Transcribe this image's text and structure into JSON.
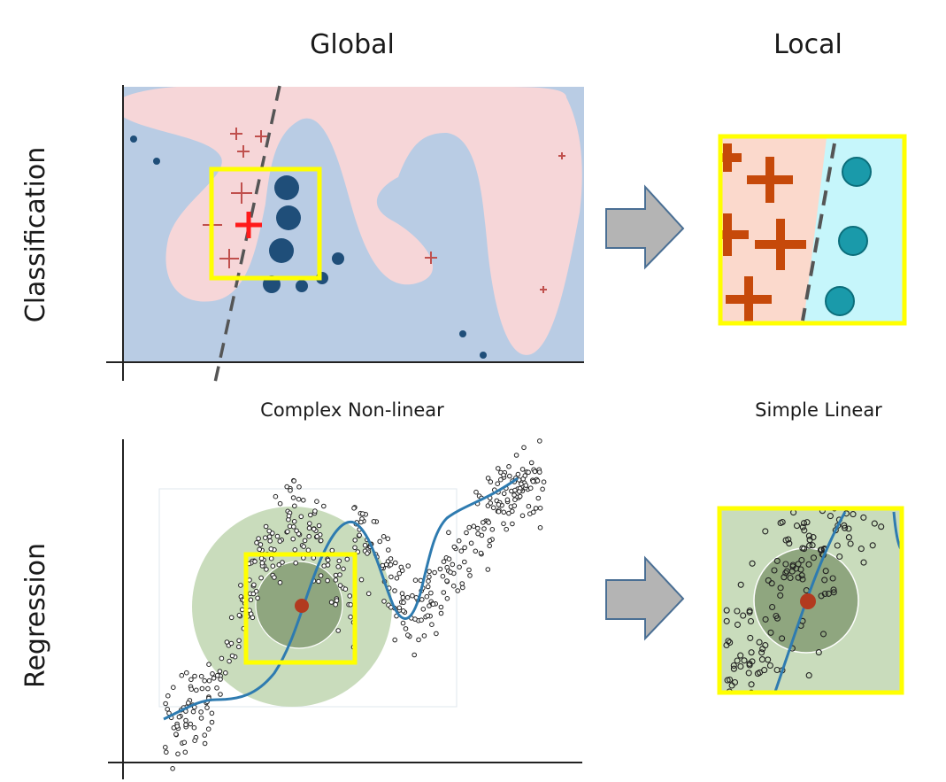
{
  "headers": {
    "global": "Global",
    "local": "Local"
  },
  "rows": {
    "classification": "Classification",
    "regression": "Regression"
  },
  "captions": {
    "global_model": "Complex Non-linear",
    "local_model": "Simple Linear"
  },
  "colors": {
    "class_a_region": "#f6d6d8",
    "class_b_region": "#b9cce4",
    "class_a_marker": "#c0504d",
    "class_a_focus": "#ff1a1a",
    "class_b_marker": "#1f4e79",
    "zoom_box": "#ffff00",
    "local_a_region": "#fbd9cc",
    "local_a_marker": "#c6490a",
    "local_b_region": "#c6f6fb",
    "local_b_marker": "#1a9aaa",
    "boundary": "#555555",
    "arrow_fill": "#b4b4b4",
    "arrow_stroke": "#4a6f94",
    "kernel_outer": "#c9dcbc",
    "kernel_inner": "#8fa67f",
    "curve": "#2e7bb0",
    "focus_point": "#b23a1f",
    "point_stroke": "#222222"
  },
  "icons": {
    "arrow": "right-arrow-icon"
  }
}
